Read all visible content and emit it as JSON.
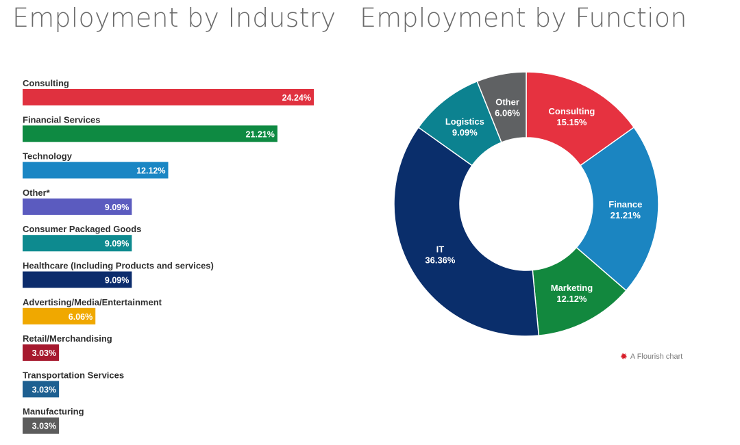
{
  "chart_data": [
    {
      "type": "bar",
      "orientation": "horizontal",
      "title": "Employment by Industry",
      "unit": "%",
      "categories": [
        "Consulting",
        "Financial Services",
        "Technology",
        "Other*",
        "Consumer Packaged Goods",
        "Healthcare (Including Products and services)",
        "Advertising/Media/Entertainment",
        "Retail/Merchandising",
        "Transportation Services",
        "Manufacturing"
      ],
      "values": [
        24.24,
        21.21,
        12.12,
        9.09,
        9.09,
        9.09,
        6.06,
        3.03,
        3.03,
        3.03
      ],
      "colors": [
        "#e0313f",
        "#0e8a42",
        "#1a86c4",
        "#5b5bbf",
        "#0d8a8f",
        "#0c2c6c",
        "#f0a800",
        "#a6192e",
        "#1e6091",
        "#5c5c5c"
      ]
    },
    {
      "type": "pie",
      "variant": "donut",
      "title": "Employment by Function",
      "unit": "%",
      "categories": [
        "Consulting",
        "Finance",
        "Marketing",
        "IT",
        "Logistics",
        "Other"
      ],
      "values": [
        15.15,
        21.21,
        12.12,
        36.36,
        9.09,
        6.06
      ],
      "colors": [
        "#e63240",
        "#1b85c1",
        "#12883e",
        "#0a2e6b",
        "#0c8290",
        "#5f6163"
      ]
    }
  ],
  "credit": {
    "symbol": "✹",
    "text": "A Flourish chart"
  }
}
